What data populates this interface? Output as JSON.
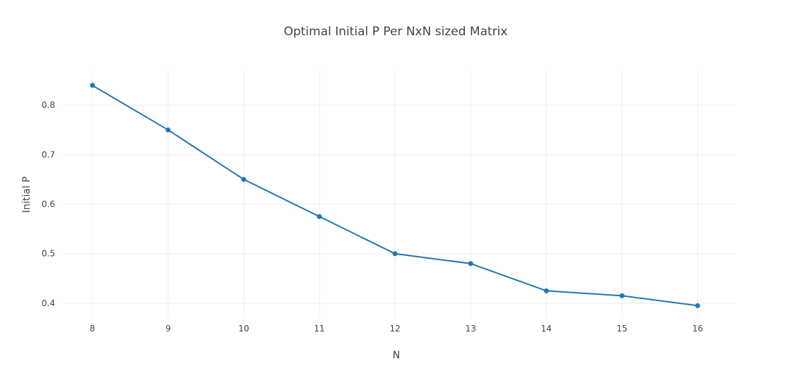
{
  "chart_data": {
    "type": "line",
    "title": "Optimal Initial P Per NxN sized Matrix",
    "xlabel": "N",
    "ylabel": "Initial P",
    "x": [
      8,
      9,
      10,
      11,
      12,
      13,
      14,
      15,
      16
    ],
    "series": [
      {
        "values": [
          0.84,
          0.75,
          0.65,
          0.575,
          0.5,
          0.48,
          0.425,
          0.415,
          0.395
        ],
        "color": "#1f77b4",
        "mode": "lines+markers"
      }
    ],
    "xticks": [
      "8",
      "9",
      "10",
      "11",
      "12",
      "13",
      "14",
      "15",
      "16"
    ],
    "yticks": [
      "0.4",
      "0.5",
      "0.6",
      "0.7",
      "0.8"
    ],
    "ytick_values": [
      0.4,
      0.5,
      0.6,
      0.7,
      0.8
    ],
    "xlim": [
      7.6,
      16.5
    ],
    "ylim": [
      0.37,
      0.87
    ],
    "grid": true,
    "legend": "none"
  }
}
